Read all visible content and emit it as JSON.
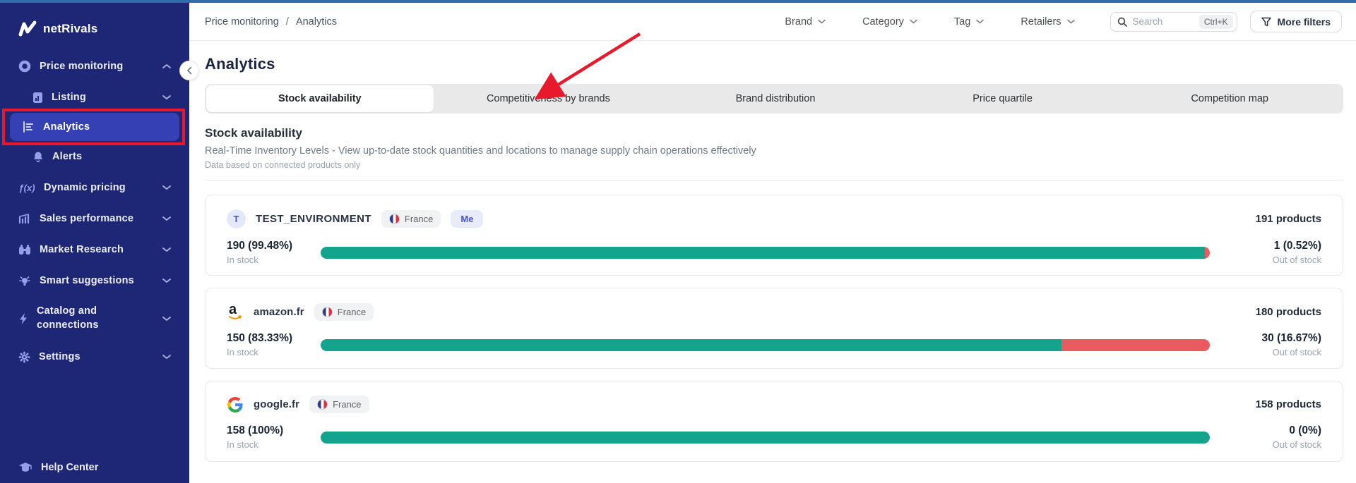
{
  "colors": {
    "sidebar_navy": "#1e2776",
    "active_item_blue": "#3440b4",
    "annotation_red": "#e8192c",
    "bar_green": "#14a38d",
    "bar_red": "#e95b5e",
    "top_strip_blue": "#2e6cac"
  },
  "sidebar": {
    "logo_text": "netRivals",
    "items": [
      {
        "label": "Price monitoring",
        "icon": "record-circle-icon",
        "chevron": "up"
      },
      {
        "label": "Listing",
        "icon": "document-chart-icon",
        "chevron": "down"
      },
      {
        "label": "Analytics",
        "icon": "bar-chart-icon",
        "active": true
      },
      {
        "label": "Alerts",
        "icon": "bell-icon"
      },
      {
        "label": "Dynamic pricing",
        "icon": "fx-icon",
        "fx_text": "ƒ(x)",
        "chevron": "down"
      },
      {
        "label": "Sales performance",
        "icon": "growth-chart-icon",
        "chevron": "down"
      },
      {
        "label": "Market Research",
        "icon": "binoculars-icon",
        "chevron": "down"
      },
      {
        "label": "Smart suggestions",
        "icon": "lightbulb-icon",
        "chevron": "down"
      },
      {
        "label": "Catalog and connections",
        "icon": "lightning-icon",
        "chevron": "down"
      },
      {
        "label": "Settings",
        "icon": "gear-icon",
        "chevron": "down"
      }
    ],
    "help_center_label": "Help Center"
  },
  "header": {
    "breadcrumb": {
      "parent": "Price monitoring",
      "separator": "/",
      "current": "Analytics"
    },
    "filters": [
      {
        "label": "Brand"
      },
      {
        "label": "Category"
      },
      {
        "label": "Tag"
      },
      {
        "label": "Retailers"
      }
    ],
    "search": {
      "placeholder": "Search",
      "shortcut": "Ctrl+K"
    },
    "more_filters_label": "More filters"
  },
  "main": {
    "page_title": "Analytics",
    "tabs": [
      {
        "label": "Stock availability",
        "active": true
      },
      {
        "label": "Competitiveness by brands"
      },
      {
        "label": "Brand distribution"
      },
      {
        "label": "Price quartile"
      },
      {
        "label": "Competition map"
      }
    ],
    "section": {
      "heading": "Stock availability",
      "description": "Real-Time Inventory Levels - View up-to-date stock quantities and locations to manage supply chain operations effectively",
      "note": "Data based on connected products only"
    }
  },
  "cards": [
    {
      "name": "TEST_ENVIRONMENT",
      "avatar_letter": "T",
      "country_badge": "France",
      "me_badge": "Me",
      "products": "191 products",
      "in_stock_value": "190 (99.48%)",
      "in_stock_label": "In stock",
      "out_of_stock_value": "1 (0.52%)",
      "out_of_stock_label": "Out of stock",
      "in_stock_pct": 99.48,
      "out_of_stock_pct": 0.52
    },
    {
      "name": "amazon.fr",
      "country_badge": "France",
      "products": "180 products",
      "in_stock_value": "150 (83.33%)",
      "in_stock_label": "In stock",
      "out_of_stock_value": "30 (16.67%)",
      "out_of_stock_label": "Out of stock",
      "in_stock_pct": 83.33,
      "out_of_stock_pct": 16.67
    },
    {
      "name": "google.fr",
      "country_badge": "France",
      "products": "158 products",
      "in_stock_value": "158 (100%)",
      "in_stock_label": "In stock",
      "out_of_stock_value": "0 (0%)",
      "out_of_stock_label": "Out of stock",
      "in_stock_pct": 100,
      "out_of_stock_pct": 0
    }
  ]
}
